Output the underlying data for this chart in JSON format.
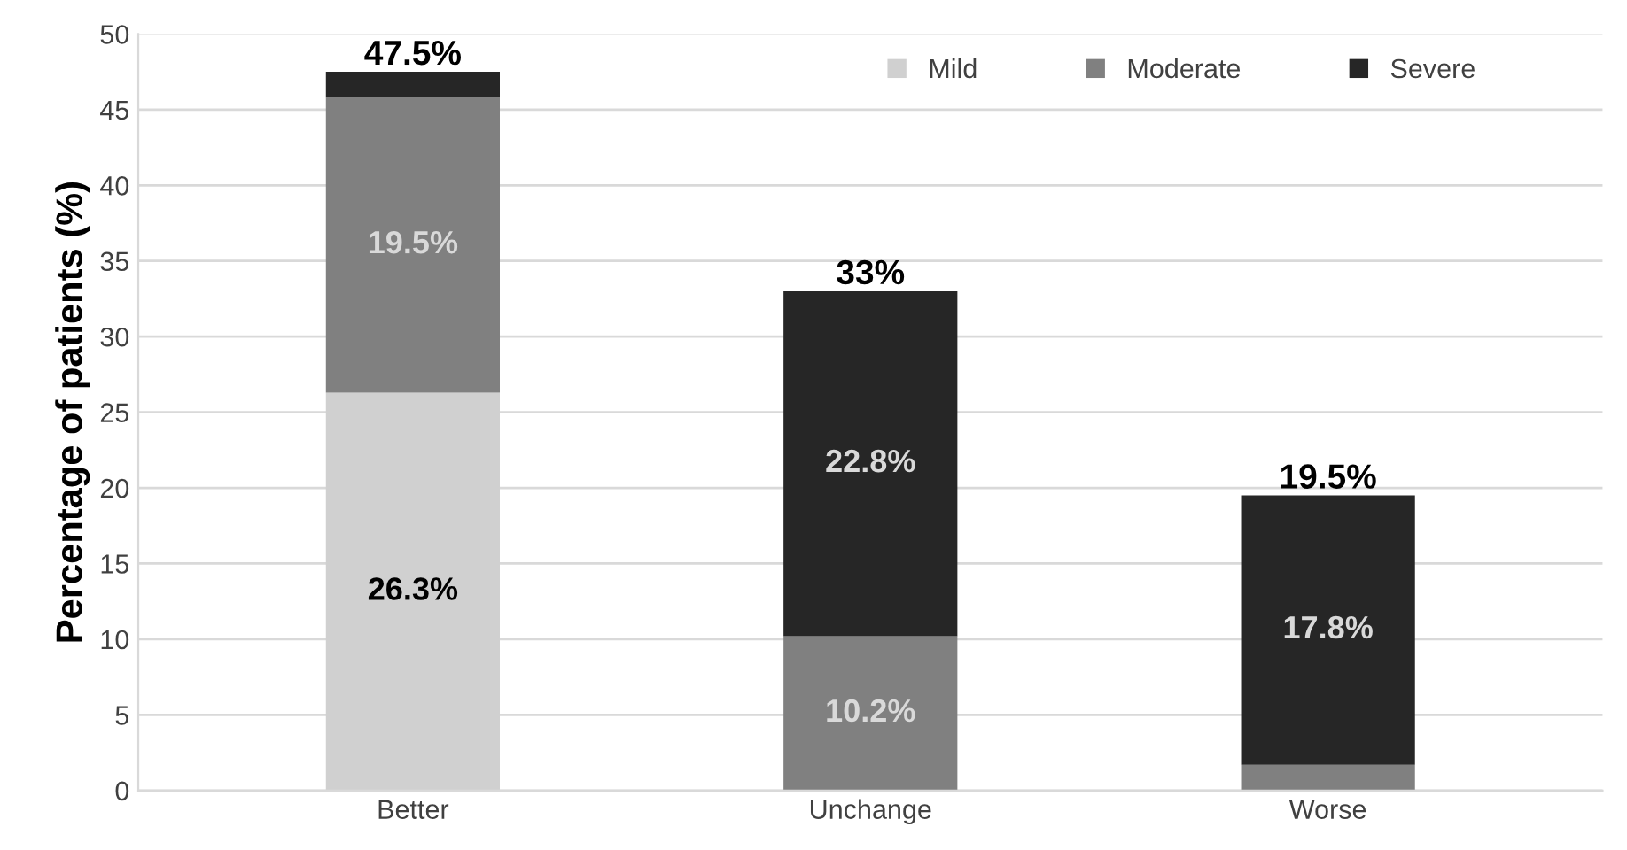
{
  "chart_data": {
    "type": "bar",
    "stacked": true,
    "ylabel": "Percentage of patients (%)",
    "categories": [
      "Better",
      "Unchange",
      "Worse"
    ],
    "series": [
      {
        "name": "Mild",
        "color": "#d0d0d0",
        "values": [
          26.3,
          0,
          0
        ],
        "value_labels": [
          "26.3%",
          null,
          null
        ]
      },
      {
        "name": "Moderate",
        "color": "#808080",
        "values": [
          19.5,
          10.2,
          1.7
        ],
        "value_labels": [
          "19.5%",
          "10.2%",
          null
        ]
      },
      {
        "name": "Severe",
        "color": "#262626",
        "values": [
          1.7,
          22.8,
          17.8
        ],
        "value_labels": [
          null,
          "22.8%",
          "17.8%"
        ]
      }
    ],
    "totals": [
      "47.5%",
      "33%",
      "19.5%"
    ],
    "ylim": [
      0,
      50
    ],
    "yticks": [
      0,
      5,
      10,
      15,
      20,
      25,
      30,
      35,
      40,
      45,
      50
    ],
    "grid": "y",
    "legend": "top right"
  }
}
